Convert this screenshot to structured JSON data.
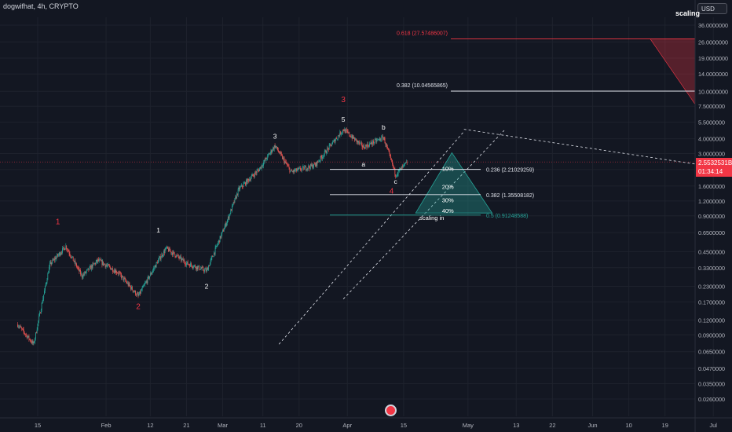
{
  "header": {
    "symbol": "dogwifhat, 4h, CRYPTO",
    "currency": "USD",
    "scaling_label": "scaling"
  },
  "last_price": {
    "value": "2.5532531B",
    "countdown": "01:34:14"
  },
  "colors": {
    "background": "#131722",
    "grid": "#1e222d",
    "up": "#26a69a",
    "down": "#ef5350",
    "wave_primary": "#f23645",
    "wave_secondary": "#ffffff",
    "fib_line_white": "#e0e3eb",
    "fib_line_teal": "#26a69a",
    "fib_line_red": "#f23645",
    "triangle_fill": "#26a69a"
  },
  "chart_data": {
    "type": "candlestick",
    "y_scale": "log",
    "ylim": [
      0.026,
      36.0
    ],
    "y_ticks": [
      "36.0000000",
      "26.0000000",
      "19.0000000",
      "14.0000000",
      "10.0000000",
      "7.5000000",
      "5.5000000",
      "4.0000000",
      "3.0000000",
      "2.2000000",
      "1.6000000",
      "1.2000000",
      "0.9000000",
      "0.6500000",
      "0.4500000",
      "0.3300000",
      "0.2300000",
      "0.1700000",
      "0.1200000",
      "0.0900000",
      "0.0650000",
      "0.0470000",
      "0.0350000",
      "0.0260000"
    ],
    "x_ticks": [
      "15",
      "Feb",
      "12",
      "21",
      "Mar",
      "11",
      "20",
      "Apr",
      "15",
      "May",
      "13",
      "22",
      "Jun",
      "10",
      "19",
      "Jul"
    ],
    "current_price": 2.5532531,
    "approx_price_path": [
      {
        "date": "Jan 10",
        "price": 0.11
      },
      {
        "date": "Jan 14",
        "price": 0.075
      },
      {
        "date": "Jan 18",
        "price": 0.35
      },
      {
        "date": "Jan 22",
        "price": 0.5
      },
      {
        "date": "Jan 26",
        "price": 0.28
      },
      {
        "date": "Jan 30",
        "price": 0.38
      },
      {
        "date": "Feb 4",
        "price": 0.3
      },
      {
        "date": "Feb 9",
        "price": 0.19
      },
      {
        "date": "Feb 14",
        "price": 0.38
      },
      {
        "date": "Feb 16",
        "price": 0.48
      },
      {
        "date": "Feb 21",
        "price": 0.36
      },
      {
        "date": "Feb 26",
        "price": 0.31
      },
      {
        "date": "Mar 2",
        "price": 0.8
      },
      {
        "date": "Mar 5",
        "price": 1.5
      },
      {
        "date": "Mar 10",
        "price": 2.2
      },
      {
        "date": "Mar 14",
        "price": 3.5
      },
      {
        "date": "Mar 18",
        "price": 2.1
      },
      {
        "date": "Mar 24",
        "price": 2.4
      },
      {
        "date": "Mar 31",
        "price": 4.8
      },
      {
        "date": "Apr 5",
        "price": 3.4
      },
      {
        "date": "Apr 10",
        "price": 4.1
      },
      {
        "date": "Apr 13",
        "price": 2.0
      },
      {
        "date": "Apr 16",
        "price": 2.55
      }
    ],
    "wave_labels": [
      {
        "text": "1",
        "date": "Jan 20",
        "price": 0.8,
        "style": "primary"
      },
      {
        "text": "2",
        "date": "Feb 9",
        "price": 0.155,
        "style": "primary"
      },
      {
        "text": "3",
        "date": "Mar 31",
        "price": 8.5,
        "style": "primary"
      },
      {
        "text": "4",
        "date": "Apr 12",
        "price": 1.45,
        "style": "primary"
      },
      {
        "text": "1",
        "date": "Feb 14",
        "price": 0.68,
        "style": "secondary"
      },
      {
        "text": "2",
        "date": "Feb 26",
        "price": 0.23,
        "style": "secondary"
      },
      {
        "text": "3",
        "date": "Mar 14",
        "price": 4.2,
        "style": "secondary"
      },
      {
        "text": "5",
        "date": "Mar 31",
        "price": 5.8,
        "style": "secondary"
      },
      {
        "text": "a",
        "date": "Apr 5",
        "price": 2.45,
        "style": "secondary"
      },
      {
        "text": "b",
        "date": "Apr 10",
        "price": 5.0,
        "style": "secondary"
      },
      {
        "text": "c",
        "date": "Apr 13",
        "price": 1.75,
        "style": "secondary"
      }
    ],
    "fib_levels_lower": [
      {
        "label": "0.236 (2.21029259)",
        "price": 2.21029259,
        "style": "white"
      },
      {
        "label": "0.382 (1.35508182)",
        "price": 1.35508182,
        "style": "white"
      },
      {
        "label": "0.5 (0.91248588)",
        "price": 0.91248588,
        "style": "teal"
      }
    ],
    "fib_levels_upper": [
      {
        "label": "0.618 (27.57486007)",
        "price": 27.57486007,
        "style": "red"
      },
      {
        "label": "0.382 (10.04565865)",
        "price": 10.04565865,
        "style": "white"
      }
    ],
    "scaling_plan": {
      "title": "scaling in",
      "tiers": [
        "10%",
        "20%",
        "30%",
        "40%"
      ]
    }
  }
}
